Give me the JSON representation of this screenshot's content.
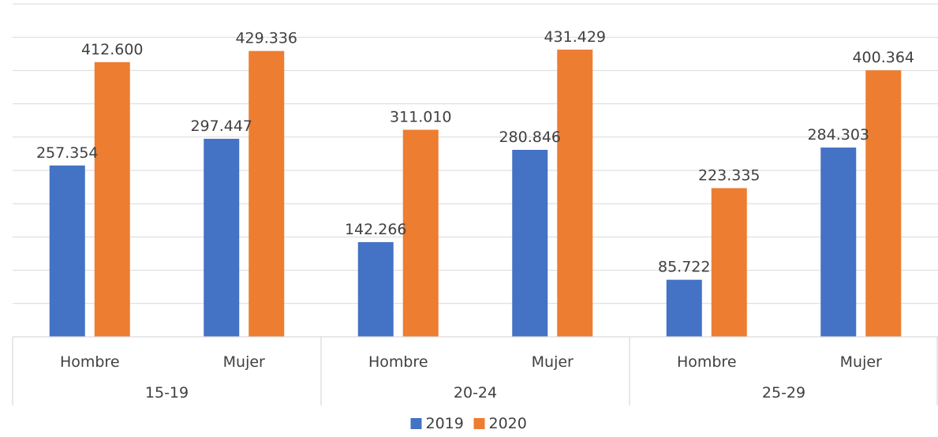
{
  "chart_data": {
    "type": "bar",
    "groups": [
      {
        "label": "15-19",
        "categories": [
          "Hombre",
          "Mujer"
        ]
      },
      {
        "label": "20-24",
        "categories": [
          "Hombre",
          "Mujer"
        ]
      },
      {
        "label": "25-29",
        "categories": [
          "Hombre",
          "Mujer"
        ]
      }
    ],
    "series": [
      {
        "name": "2019",
        "color": "#4472C4",
        "values": [
          257354,
          297447,
          142266,
          280846,
          85722,
          284303
        ],
        "labels": [
          "257.354",
          "297.447",
          "142.266",
          "280.846",
          "85.722",
          "284.303"
        ]
      },
      {
        "name": "2020",
        "color": "#ED7D31",
        "values": [
          412600,
          429336,
          311010,
          431429,
          223335,
          400364
        ],
        "labels": [
          "412.600",
          "429.336",
          "311.010",
          "431.429",
          "223.335",
          "400.364"
        ]
      }
    ],
    "ylim": [
      0,
      500000
    ],
    "gridline_step": 50000,
    "legend_position": "bottom",
    "gridlines": true
  }
}
